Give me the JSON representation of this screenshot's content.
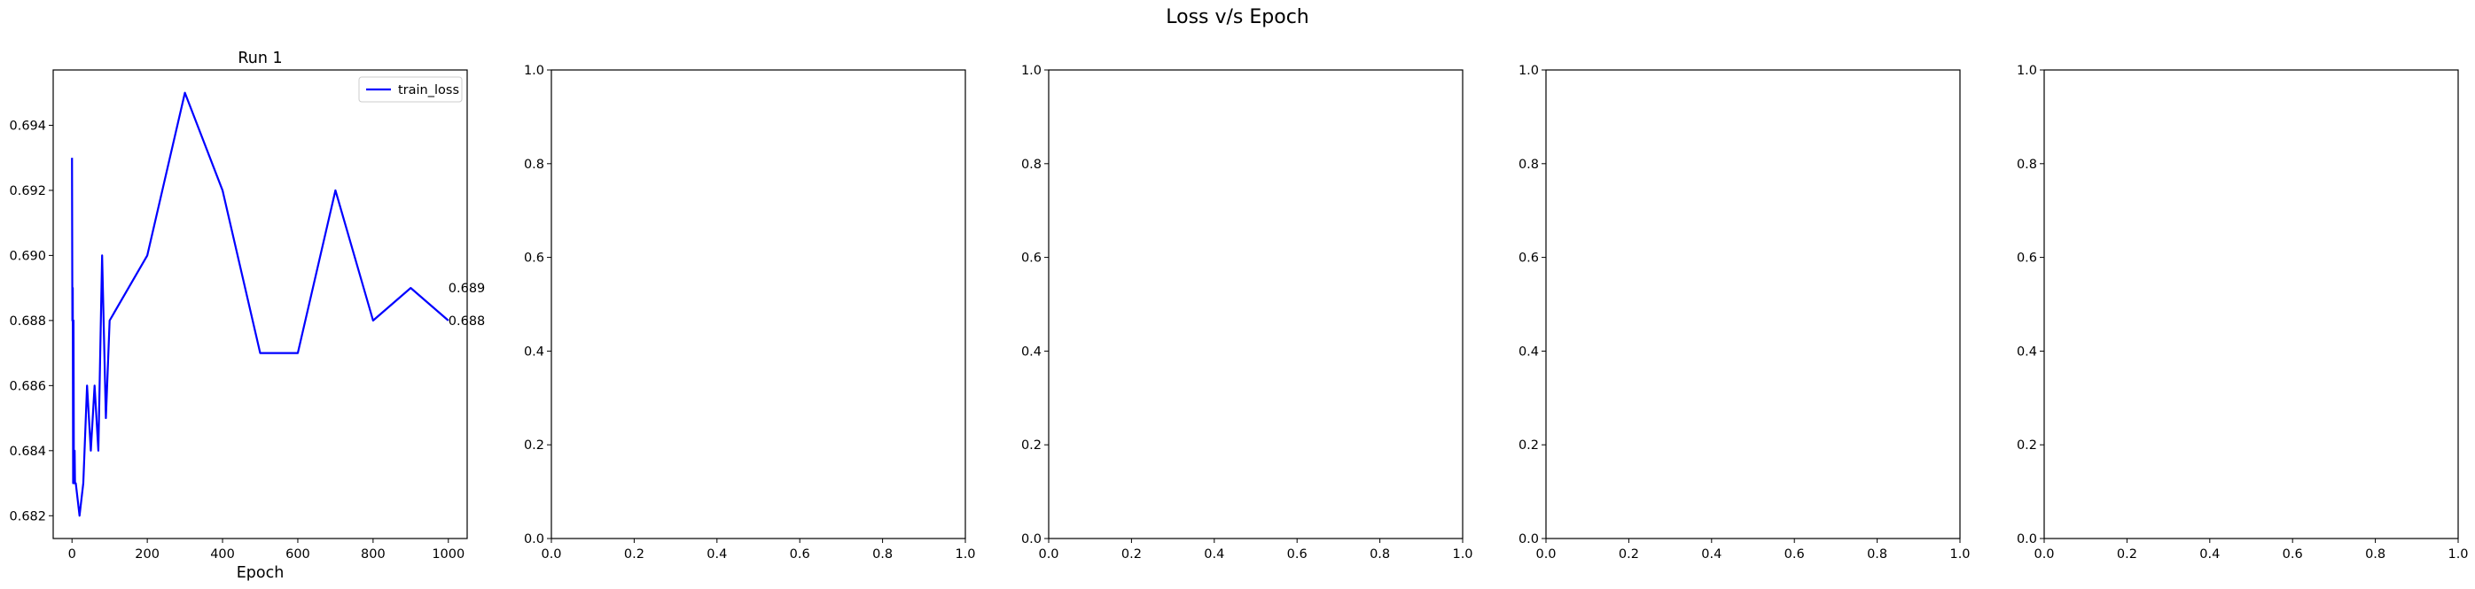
{
  "suptitle": "Loss v/s Epoch",
  "chart_data": [
    {
      "type": "line",
      "title": "Run 1",
      "xlabel": "Epoch",
      "ylabel": "",
      "xlim": [
        -50,
        1050
      ],
      "ylim": [
        0.6813,
        0.6957
      ],
      "xticks": [
        0,
        200,
        400,
        600,
        800,
        1000
      ],
      "yticks": [
        0.682,
        0.684,
        0.686,
        0.688,
        0.69,
        0.692,
        0.694
      ],
      "legend_position": "top-right",
      "series": [
        {
          "name": "train_loss",
          "color": "#0000ff",
          "x": [
            0,
            1,
            2,
            3,
            4,
            5,
            6,
            7,
            8,
            9,
            10,
            20,
            30,
            40,
            50,
            60,
            70,
            80,
            90,
            100,
            200,
            300,
            400,
            500,
            600,
            700,
            800,
            900,
            1000
          ],
          "y": [
            0.693,
            0.688,
            0.689,
            0.683,
            0.688,
            0.683,
            0.683,
            0.684,
            0.683,
            0.683,
            0.683,
            0.682,
            0.683,
            0.686,
            0.684,
            0.686,
            0.684,
            0.69,
            0.685,
            0.688,
            0.69,
            0.695,
            0.692,
            0.687,
            0.687,
            0.692,
            0.688,
            0.689,
            0.688
          ]
        }
      ],
      "annotations": [
        {
          "x": 1000,
          "y": 0.689,
          "text": "0.689"
        },
        {
          "x": 1000,
          "y": 0.688,
          "text": "0.688"
        }
      ]
    },
    {
      "type": "line",
      "title": "",
      "xlabel": "",
      "ylabel": "",
      "xlim": [
        0,
        1
      ],
      "ylim": [
        0,
        1
      ],
      "xticks": [
        0.0,
        0.2,
        0.4,
        0.6,
        0.8,
        1.0
      ],
      "yticks": [
        0.0,
        0.2,
        0.4,
        0.6,
        0.8,
        1.0
      ],
      "series": []
    },
    {
      "type": "line",
      "title": "",
      "xlabel": "",
      "ylabel": "",
      "xlim": [
        0,
        1
      ],
      "ylim": [
        0,
        1
      ],
      "xticks": [
        0.0,
        0.2,
        0.4,
        0.6,
        0.8,
        1.0
      ],
      "yticks": [
        0.0,
        0.2,
        0.4,
        0.6,
        0.8,
        1.0
      ],
      "series": []
    },
    {
      "type": "line",
      "title": "",
      "xlabel": "",
      "ylabel": "",
      "xlim": [
        0,
        1
      ],
      "ylim": [
        0,
        1
      ],
      "xticks": [
        0.0,
        0.2,
        0.4,
        0.6,
        0.8,
        1.0
      ],
      "yticks": [
        0.0,
        0.2,
        0.4,
        0.6,
        0.8,
        1.0
      ],
      "series": []
    },
    {
      "type": "line",
      "title": "",
      "xlabel": "",
      "ylabel": "",
      "xlim": [
        0,
        1
      ],
      "ylim": [
        0,
        1
      ],
      "xticks": [
        0.0,
        0.2,
        0.4,
        0.6,
        0.8,
        1.0
      ],
      "yticks": [
        0.0,
        0.2,
        0.4,
        0.6,
        0.8,
        1.0
      ],
      "series": []
    }
  ]
}
